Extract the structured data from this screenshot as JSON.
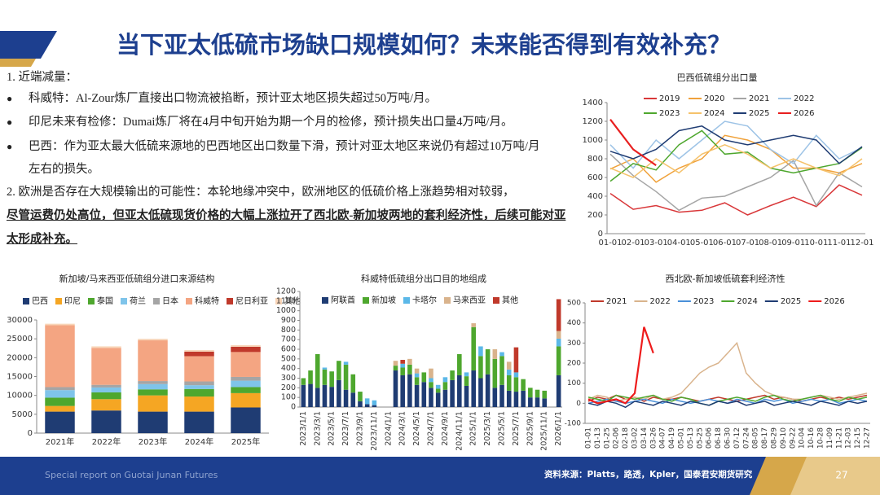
{
  "header": {
    "title": "当下亚太低硫市场缺口规模如何？未来能否得到有效补充？"
  },
  "body": {
    "heading1": "1. 近端减量：",
    "bullets": [
      "科威特：Al-Zour炼厂直接出口物流被掐断，预计亚太地区损失超过50万吨/月。",
      "印尼未来有检修：Dumai炼厂将在4月中旬开始为期一个月的检修，预计损失出口量4万吨/月。",
      "巴西：作为亚太最大低硫来源地的巴西地区出口数量下滑，预计对亚太地区来说仍有超过10万吨/月左右的损失。"
    ],
    "heading2": "2. 欧洲是否存在大规模输出的可能性：本轮地缘冲突中，欧洲地区的低硫价格上涨趋势相对较弱，",
    "emphasis": "尽管运费仍处高位，但亚太低硫现货价格的大幅上涨拉开了西北欧-新加坡两地的套利经济性，后续可能对亚太形成补充。"
  },
  "chart_data": [
    {
      "type": "line",
      "title": "巴西低硫组分出口量",
      "categories": [
        "01-01",
        "02-01",
        "03-01",
        "04-01",
        "05-01",
        "06-01",
        "07-01",
        "08-01",
        "09-01",
        "10-01",
        "11-01",
        "12-01"
      ],
      "ylim": [
        0,
        1400
      ],
      "yticks": [
        0,
        200,
        400,
        600,
        800,
        1000,
        1200,
        1400
      ],
      "grid": false,
      "legend": "top",
      "series": [
        {
          "name": "2019",
          "color": "#d9383a",
          "values": [
            430,
            260,
            300,
            230,
            250,
            330,
            200,
            300,
            390,
            290,
            520,
            410
          ]
        },
        {
          "name": "2020",
          "color": "#f0a23b",
          "values": [
            690,
            800,
            550,
            700,
            800,
            1050,
            1000,
            900,
            700,
            700,
            650,
            750
          ]
        },
        {
          "name": "2021",
          "color": "#a5a5a5",
          "values": [
            850,
            620,
            450,
            250,
            380,
            400,
            500,
            600,
            780,
            300,
            650,
            500
          ]
        },
        {
          "name": "2022",
          "color": "#9dc3e6",
          "values": [
            950,
            700,
            1000,
            800,
            1000,
            1200,
            1150,
            900,
            750,
            1050,
            800,
            920
          ]
        },
        {
          "name": "2023",
          "color": "#4ea72e",
          "values": [
            560,
            750,
            680,
            950,
            1100,
            850,
            870,
            700,
            650,
            700,
            750,
            920
          ]
        },
        {
          "name": "2024",
          "color": "#f5c26b",
          "values": [
            700,
            600,
            800,
            650,
            850,
            950,
            850,
            700,
            800,
            700,
            620,
            800
          ]
        },
        {
          "name": "2025",
          "color": "#1f3c73",
          "values": [
            880,
            800,
            900,
            1100,
            1150,
            1000,
            950,
            1000,
            1050,
            1000,
            750,
            930
          ]
        },
        {
          "name": "2026",
          "color": "#e81f1f",
          "values": [
            1220,
            900,
            730,
            null,
            null,
            null,
            null,
            null,
            null,
            null,
            null,
            null
          ]
        }
      ]
    },
    {
      "type": "bar",
      "stacked": true,
      "title": "新加坡/马来西亚低硫组分进口来源结构",
      "categories": [
        "2021年",
        "2022年",
        "2023年",
        "2024年",
        "2025年"
      ],
      "ylim": [
        0,
        30000
      ],
      "yticks": [
        0,
        5000,
        10000,
        15000,
        20000,
        25000,
        30000
      ],
      "grid": false,
      "legend": "top",
      "series": [
        {
          "name": "巴西",
          "color": "#1f3c73",
          "values": [
            5700,
            6000,
            5700,
            5700,
            6800
          ]
        },
        {
          "name": "印尼",
          "color": "#f5a623",
          "values": [
            1500,
            3000,
            4300,
            4000,
            3800
          ]
        },
        {
          "name": "泰国",
          "color": "#4ea72e",
          "values": [
            2200,
            1800,
            1600,
            2000,
            1600
          ]
        },
        {
          "name": "荷兰",
          "color": "#7fc4ea",
          "values": [
            2000,
            1300,
            1400,
            1000,
            1700
          ]
        },
        {
          "name": "日本",
          "color": "#a5a5a5",
          "values": [
            800,
            700,
            800,
            1000,
            1000
          ]
        },
        {
          "name": "科威特",
          "color": "#f4a582",
          "values": [
            16400,
            9800,
            10800,
            6700,
            6600
          ]
        },
        {
          "name": "尼日利亚",
          "color": "#c0392b",
          "values": [
            0,
            0,
            0,
            1200,
            1400
          ]
        },
        {
          "name": "其他",
          "color": "#f8d5b8",
          "values": [
            400,
            400,
            400,
            400,
            400
          ]
        }
      ]
    },
    {
      "type": "bar",
      "stacked": true,
      "title": "科威特低硫组分出口目的地组成",
      "categories": [
        "2023/1/1",
        null,
        "2023/3/1",
        null,
        "2023/5/1",
        null,
        "2023/7/1",
        null,
        "2023/9/1",
        null,
        "2023/11/1",
        null,
        "2024/1/1",
        null,
        "2024/3/1",
        null,
        "2024/5/1",
        null,
        "2024/7/1",
        null,
        "2024/9/1",
        null,
        "2024/11/1",
        null,
        "2025/1/1",
        null,
        "2025/3/1",
        null,
        "2025/5/1",
        null,
        "2025/7/1",
        null,
        "2025/9/1",
        null,
        "2025/11/1",
        null,
        "2026/1/1"
      ],
      "ylim": [
        0,
        1200
      ],
      "yticks": [
        0,
        100,
        200,
        300,
        400,
        500,
        600,
        700,
        800,
        900,
        1000,
        1100,
        1200
      ],
      "grid": false,
      "legend": "top",
      "series": [
        {
          "name": "阿联酋",
          "color": "#1f3c73",
          "values": [
            230,
            240,
            200,
            230,
            210,
            280,
            180,
            150,
            60,
            30,
            20,
            0,
            0,
            380,
            330,
            340,
            230,
            260,
            200,
            150,
            180,
            280,
            330,
            220,
            380,
            300,
            340,
            200,
            230,
            170,
            160,
            170,
            100,
            100,
            90,
            0,
            330
          ]
        },
        {
          "name": "新加坡",
          "color": "#4ea72e",
          "values": [
            70,
            140,
            350,
            160,
            160,
            200,
            260,
            190,
            100,
            0,
            0,
            0,
            0,
            50,
            80,
            100,
            80,
            100,
            60,
            40,
            80,
            100,
            220,
            100,
            450,
            230,
            260,
            300,
            300,
            160,
            150,
            120,
            100,
            80,
            80,
            0,
            300
          ]
        },
        {
          "name": "卡塔尔",
          "color": "#5bb8e8",
          "values": [
            0,
            0,
            0,
            20,
            0,
            0,
            30,
            0,
            0,
            60,
            50,
            0,
            0,
            0,
            40,
            0,
            40,
            0,
            40,
            40,
            50,
            0,
            0,
            40,
            0,
            100,
            0,
            0,
            40,
            60,
            50,
            0,
            0,
            0,
            0,
            0,
            80
          ]
        },
        {
          "name": "马来西亚",
          "color": "#d9b38c",
          "values": [
            0,
            0,
            0,
            0,
            0,
            0,
            0,
            0,
            0,
            0,
            0,
            0,
            0,
            50,
            0,
            60,
            50,
            0,
            100,
            0,
            0,
            0,
            0,
            0,
            40,
            0,
            0,
            100,
            0,
            80,
            0,
            0,
            0,
            0,
            0,
            0,
            80
          ]
        },
        {
          "name": "其他",
          "color": "#c0392b",
          "values": [
            0,
            0,
            0,
            0,
            0,
            0,
            0,
            0,
            0,
            0,
            0,
            0,
            0,
            0,
            40,
            0,
            0,
            0,
            0,
            0,
            0,
            0,
            0,
            0,
            0,
            0,
            0,
            0,
            0,
            0,
            260,
            0,
            0,
            0,
            0,
            0,
            330
          ]
        }
      ]
    },
    {
      "type": "line",
      "title": "西北欧-新加坡低硫套利经济性",
      "categories": [
        "01-01",
        "01-13",
        "01-25",
        "02-06",
        "02-18",
        "03-02",
        "03-14",
        "03-26",
        "04-07",
        "04-19",
        "05-01",
        "05-13",
        "05-25",
        "06-06",
        "06-18",
        "06-30",
        "07-12",
        "07-24",
        "08-05",
        "08-17",
        "08-29",
        "09-10",
        "09-22",
        "10-04",
        "10-16",
        "10-28",
        "11-09",
        "11-21",
        "12-03",
        "12-15",
        "12-27"
      ],
      "ylim": [
        -100,
        500
      ],
      "yticks": [
        -100,
        0,
        100,
        200,
        300,
        400,
        500
      ],
      "grid": false,
      "legend": "top",
      "series": [
        {
          "name": "2021",
          "color": "#c0392b",
          "values": [
            10,
            30,
            20,
            40,
            20,
            30,
            10,
            30,
            20,
            20,
            30,
            20,
            10,
            20,
            30,
            20,
            10,
            20,
            30,
            40,
            20,
            30,
            20,
            10,
            20,
            30,
            20,
            30,
            20,
            30,
            40
          ]
        },
        {
          "name": "2022",
          "color": "#d9b38c",
          "values": [
            20,
            40,
            30,
            10,
            20,
            30,
            20,
            40,
            20,
            30,
            50,
            100,
            150,
            180,
            200,
            250,
            300,
            150,
            100,
            60,
            40,
            30,
            20,
            20,
            30,
            40,
            30,
            20,
            30,
            40,
            50
          ]
        },
        {
          "name": "2023",
          "color": "#4a90d9",
          "values": [
            0,
            10,
            20,
            10,
            0,
            10,
            20,
            10,
            0,
            20,
            10,
            0,
            10,
            20,
            10,
            0,
            20,
            10,
            0,
            20,
            10,
            20,
            0,
            10,
            20,
            10,
            20,
            0,
            10,
            20,
            10
          ]
        },
        {
          "name": "2024",
          "color": "#4ea72e",
          "values": [
            30,
            20,
            10,
            40,
            30,
            20,
            30,
            40,
            20,
            10,
            30,
            20,
            0,
            -10,
            10,
            20,
            30,
            20,
            10,
            30,
            40,
            20,
            10,
            20,
            30,
            40,
            20,
            10,
            30,
            20,
            30
          ]
        },
        {
          "name": "2025",
          "color": "#1f3c73",
          "values": [
            0,
            -10,
            10,
            0,
            -20,
            10,
            0,
            -10,
            10,
            0,
            -10,
            10,
            0,
            -10,
            10,
            0,
            10,
            -10,
            0,
            10,
            -10,
            0,
            10,
            0,
            -10,
            10,
            0,
            -10,
            10,
            0,
            10
          ]
        },
        {
          "name": "2026",
          "color": "#ee1c1c",
          "values": [
            20,
            0,
            10,
            20,
            0,
            50,
            380,
            250,
            null,
            null,
            null,
            null,
            null,
            null,
            null,
            null,
            null,
            null,
            null,
            null,
            null,
            null,
            null,
            null,
            null,
            null,
            null,
            null,
            null,
            null,
            null
          ]
        }
      ]
    }
  ],
  "footer": {
    "left": "Special report on Guotai Junan Futures",
    "source": "资料来源：Platts，路透，Kpler，国泰君安期货研究",
    "page": 27
  }
}
